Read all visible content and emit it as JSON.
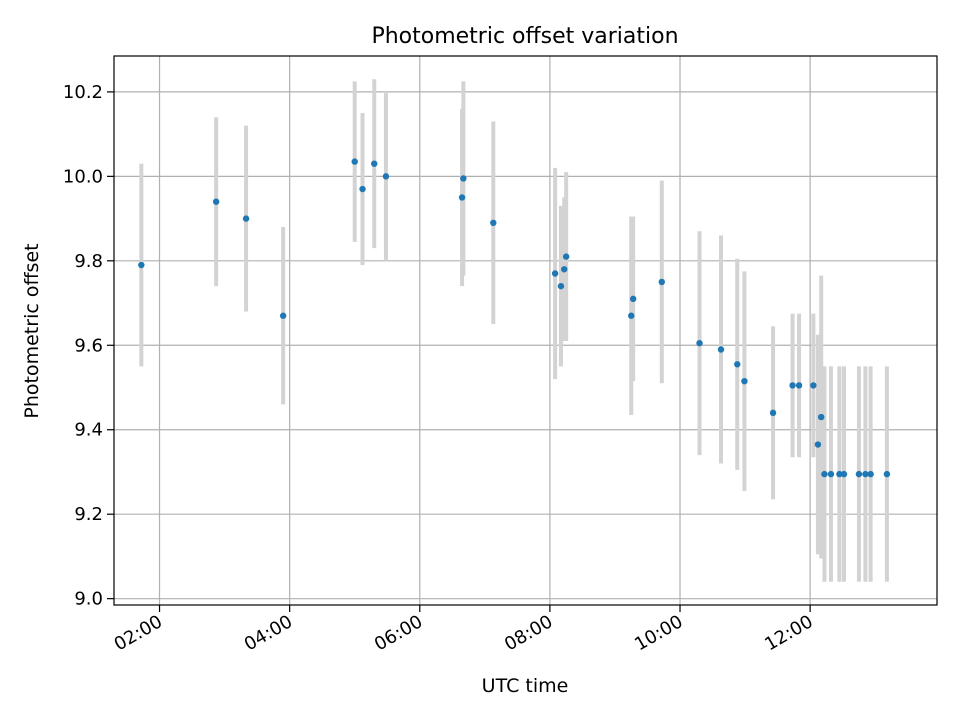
{
  "chart_data": {
    "type": "scatter",
    "title": "Photometric offset variation",
    "xlabel": "UTC time",
    "ylabel": "Photometric offset",
    "x_unit": "hours UTC",
    "xlim": [
      1.3,
      13.95
    ],
    "ylim": [
      8.985,
      10.285
    ],
    "x_ticks": [
      {
        "value": 2,
        "label": "02:00"
      },
      {
        "value": 4,
        "label": "04:00"
      },
      {
        "value": 6,
        "label": "06:00"
      },
      {
        "value": 8,
        "label": "08:00"
      },
      {
        "value": 10,
        "label": "10:00"
      },
      {
        "value": 12,
        "label": "12:00"
      }
    ],
    "y_ticks": [
      {
        "value": 9.0,
        "label": "9.0"
      },
      {
        "value": 9.2,
        "label": "9.2"
      },
      {
        "value": 9.4,
        "label": "9.4"
      },
      {
        "value": 9.6,
        "label": "9.6"
      },
      {
        "value": 9.8,
        "label": "9.8"
      },
      {
        "value": 10.0,
        "label": "10.0"
      },
      {
        "value": 10.2,
        "label": "10.2"
      }
    ],
    "grid": true,
    "marker_color": "#1f77b4",
    "errorbar_color": "#d3d3d3",
    "points": [
      {
        "x": 1.72,
        "y": 9.79,
        "err": 0.24
      },
      {
        "x": 2.87,
        "y": 9.94,
        "err": 0.2
      },
      {
        "x": 3.33,
        "y": 9.9,
        "err": 0.22
      },
      {
        "x": 3.9,
        "y": 9.67,
        "err": 0.21
      },
      {
        "x": 5.0,
        "y": 10.035,
        "err": 0.19
      },
      {
        "x": 5.12,
        "y": 9.97,
        "err": 0.18
      },
      {
        "x": 5.3,
        "y": 10.03,
        "err": 0.2
      },
      {
        "x": 5.48,
        "y": 10.0,
        "err": 0.2
      },
      {
        "x": 6.65,
        "y": 9.95,
        "err": 0.21
      },
      {
        "x": 6.67,
        "y": 9.995,
        "err": 0.23
      },
      {
        "x": 7.13,
        "y": 9.89,
        "err": 0.24
      },
      {
        "x": 8.08,
        "y": 9.77,
        "err": 0.25
      },
      {
        "x": 8.17,
        "y": 9.74,
        "err": 0.19
      },
      {
        "x": 8.22,
        "y": 9.78,
        "err": 0.17
      },
      {
        "x": 8.25,
        "y": 9.81,
        "err": 0.2
      },
      {
        "x": 9.25,
        "y": 9.67,
        "err": 0.235
      },
      {
        "x": 9.28,
        "y": 9.71,
        "err": 0.195
      },
      {
        "x": 9.72,
        "y": 9.75,
        "err": 0.24
      },
      {
        "x": 10.3,
        "y": 9.605,
        "err": 0.265
      },
      {
        "x": 10.63,
        "y": 9.59,
        "err": 0.27
      },
      {
        "x": 10.88,
        "y": 9.555,
        "err": 0.25
      },
      {
        "x": 10.99,
        "y": 9.515,
        "err": 0.26
      },
      {
        "x": 11.43,
        "y": 9.44,
        "err": 0.205
      },
      {
        "x": 11.73,
        "y": 9.505,
        "err": 0.17
      },
      {
        "x": 11.83,
        "y": 9.505,
        "err": 0.17
      },
      {
        "x": 12.05,
        "y": 9.505,
        "err": 0.17
      },
      {
        "x": 12.12,
        "y": 9.365,
        "err": 0.26
      },
      {
        "x": 12.17,
        "y": 9.43,
        "err": 0.335
      },
      {
        "x": 12.22,
        "y": 9.295,
        "err": 0.255
      },
      {
        "x": 12.32,
        "y": 9.295,
        "err": 0.255
      },
      {
        "x": 12.45,
        "y": 9.295,
        "err": 0.255
      },
      {
        "x": 12.52,
        "y": 9.295,
        "err": 0.255
      },
      {
        "x": 12.75,
        "y": 9.295,
        "err": 0.255
      },
      {
        "x": 12.85,
        "y": 9.295,
        "err": 0.255
      },
      {
        "x": 12.93,
        "y": 9.295,
        "err": 0.255
      },
      {
        "x": 13.18,
        "y": 9.295,
        "err": 0.255
      }
    ]
  }
}
